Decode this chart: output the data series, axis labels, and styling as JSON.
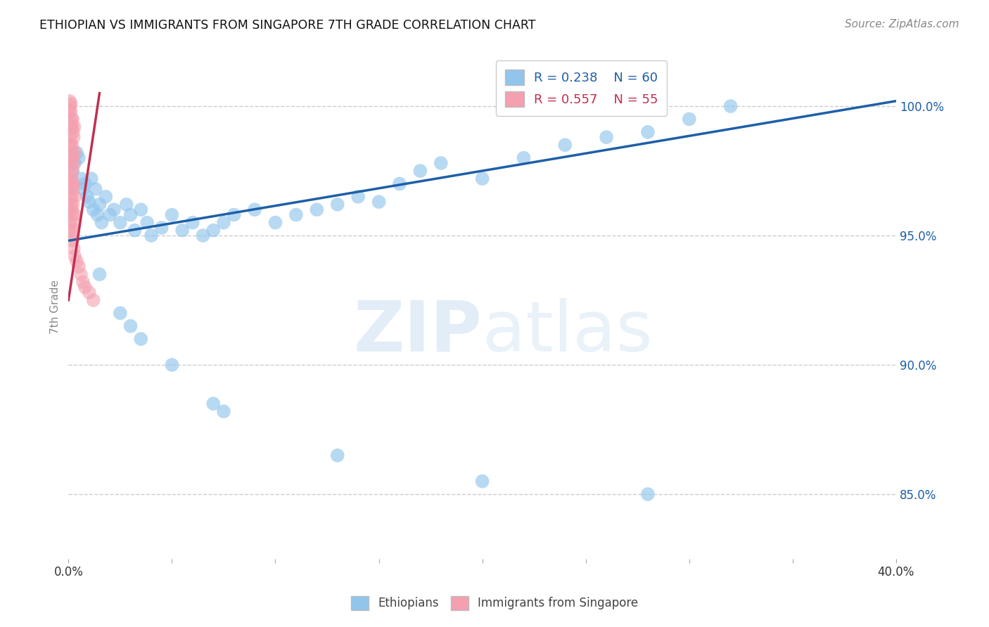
{
  "title": "ETHIOPIAN VS IMMIGRANTS FROM SINGAPORE 7TH GRADE CORRELATION CHART",
  "source": "Source: ZipAtlas.com",
  "ylabel": "7th Grade",
  "yticks": [
    "85.0%",
    "90.0%",
    "95.0%",
    "100.0%"
  ],
  "ytick_vals": [
    85.0,
    90.0,
    95.0,
    100.0
  ],
  "xlim": [
    0.0,
    40.0
  ],
  "ylim": [
    82.5,
    102.0
  ],
  "legend_blue_r": "R = 0.238",
  "legend_blue_n": "N = 60",
  "legend_pink_r": "R = 0.557",
  "legend_pink_n": "N = 55",
  "blue_color": "#92C5EC",
  "pink_color": "#F4A0B0",
  "line_color": "#1E5FA8",
  "pink_line_color": "#C03050",
  "background_color": "#FFFFFF",
  "grid_color": "#CCCCCC",
  "blue_scatter": [
    [
      0.2,
      97.5
    ],
    [
      0.3,
      97.8
    ],
    [
      0.4,
      98.2
    ],
    [
      0.5,
      98.0
    ],
    [
      0.6,
      97.2
    ],
    [
      0.7,
      96.8
    ],
    [
      0.8,
      97.0
    ],
    [
      0.9,
      96.5
    ],
    [
      1.0,
      96.3
    ],
    [
      1.1,
      97.2
    ],
    [
      1.2,
      96.0
    ],
    [
      1.3,
      96.8
    ],
    [
      1.4,
      95.8
    ],
    [
      1.5,
      96.2
    ],
    [
      1.6,
      95.5
    ],
    [
      1.8,
      96.5
    ],
    [
      2.0,
      95.8
    ],
    [
      2.2,
      96.0
    ],
    [
      2.5,
      95.5
    ],
    [
      2.8,
      96.2
    ],
    [
      3.0,
      95.8
    ],
    [
      3.2,
      95.2
    ],
    [
      3.5,
      96.0
    ],
    [
      3.8,
      95.5
    ],
    [
      4.0,
      95.0
    ],
    [
      4.5,
      95.3
    ],
    [
      5.0,
      95.8
    ],
    [
      5.5,
      95.2
    ],
    [
      6.0,
      95.5
    ],
    [
      6.5,
      95.0
    ],
    [
      7.0,
      95.2
    ],
    [
      7.5,
      95.5
    ],
    [
      8.0,
      95.8
    ],
    [
      9.0,
      96.0
    ],
    [
      10.0,
      95.5
    ],
    [
      11.0,
      95.8
    ],
    [
      12.0,
      96.0
    ],
    [
      13.0,
      96.2
    ],
    [
      14.0,
      96.5
    ],
    [
      15.0,
      96.3
    ],
    [
      16.0,
      97.0
    ],
    [
      17.0,
      97.5
    ],
    [
      18.0,
      97.8
    ],
    [
      20.0,
      97.2
    ],
    [
      22.0,
      98.0
    ],
    [
      24.0,
      98.5
    ],
    [
      26.0,
      98.8
    ],
    [
      28.0,
      99.0
    ],
    [
      30.0,
      99.5
    ],
    [
      32.0,
      100.0
    ],
    [
      1.5,
      93.5
    ],
    [
      2.5,
      92.0
    ],
    [
      3.0,
      91.5
    ],
    [
      3.5,
      91.0
    ],
    [
      5.0,
      90.0
    ],
    [
      7.0,
      88.5
    ],
    [
      7.5,
      88.2
    ],
    [
      13.0,
      86.5
    ],
    [
      20.0,
      85.5
    ],
    [
      28.0,
      85.0
    ]
  ],
  "pink_scatter": [
    [
      0.05,
      100.2
    ],
    [
      0.08,
      100.0
    ],
    [
      0.1,
      99.8
    ],
    [
      0.12,
      100.1
    ],
    [
      0.15,
      99.5
    ],
    [
      0.18,
      99.2
    ],
    [
      0.2,
      99.5
    ],
    [
      0.22,
      99.0
    ],
    [
      0.25,
      98.8
    ],
    [
      0.28,
      99.2
    ],
    [
      0.05,
      99.5
    ],
    [
      0.06,
      99.8
    ],
    [
      0.08,
      98.8
    ],
    [
      0.1,
      98.5
    ],
    [
      0.12,
      99.2
    ],
    [
      0.15,
      98.2
    ],
    [
      0.18,
      98.5
    ],
    [
      0.2,
      98.0
    ],
    [
      0.25,
      97.8
    ],
    [
      0.3,
      98.2
    ],
    [
      0.05,
      98.5
    ],
    [
      0.07,
      98.0
    ],
    [
      0.1,
      97.5
    ],
    [
      0.12,
      97.8
    ],
    [
      0.15,
      97.2
    ],
    [
      0.18,
      97.0
    ],
    [
      0.2,
      97.5
    ],
    [
      0.22,
      96.8
    ],
    [
      0.25,
      97.0
    ],
    [
      0.3,
      96.5
    ],
    [
      0.05,
      97.2
    ],
    [
      0.08,
      96.8
    ],
    [
      0.1,
      96.5
    ],
    [
      0.12,
      96.2
    ],
    [
      0.15,
      96.5
    ],
    [
      0.18,
      96.0
    ],
    [
      0.2,
      95.8
    ],
    [
      0.22,
      96.2
    ],
    [
      0.25,
      95.5
    ],
    [
      0.3,
      95.8
    ],
    [
      0.05,
      96.0
    ],
    [
      0.08,
      95.5
    ],
    [
      0.1,
      95.2
    ],
    [
      0.12,
      95.0
    ],
    [
      0.15,
      95.3
    ],
    [
      0.2,
      94.8
    ],
    [
      0.25,
      94.5
    ],
    [
      0.3,
      94.2
    ],
    [
      0.4,
      94.0
    ],
    [
      0.5,
      93.8
    ],
    [
      0.6,
      93.5
    ],
    [
      0.7,
      93.2
    ],
    [
      0.8,
      93.0
    ],
    [
      1.0,
      92.8
    ],
    [
      1.2,
      92.5
    ]
  ],
  "blue_line_x": [
    0.0,
    40.0
  ],
  "blue_line_y": [
    94.8,
    100.2
  ],
  "pink_line_x": [
    0.0,
    1.5
  ],
  "pink_line_y": [
    92.5,
    100.5
  ]
}
